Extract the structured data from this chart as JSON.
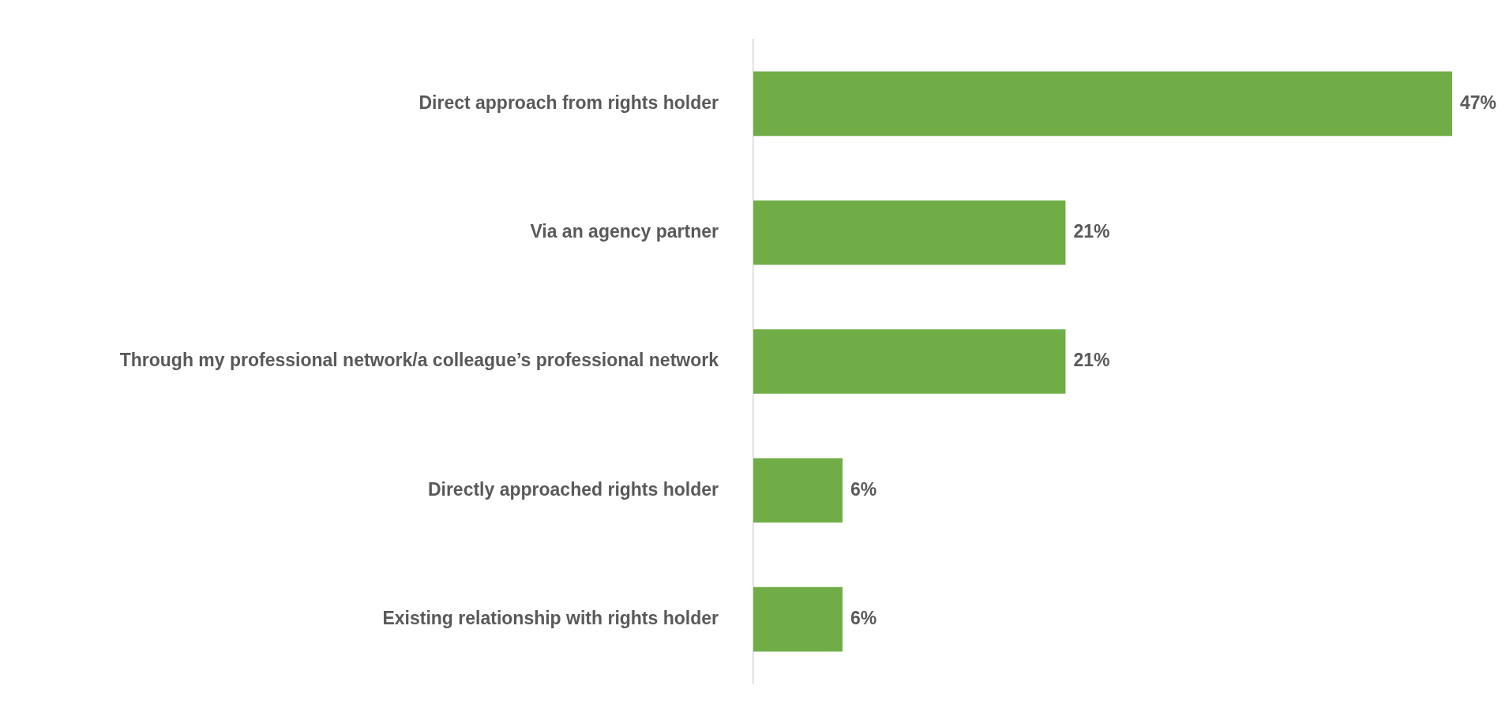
{
  "chart_data": {
    "type": "bar",
    "orientation": "horizontal",
    "categories": [
      "Direct approach from rights holder",
      "Via an agency partner",
      "Through my professional network/a colleague’s professional network",
      "Directly approached rights holder",
      "Existing relationship with rights holder"
    ],
    "values": [
      47,
      21,
      21,
      6,
      6
    ],
    "value_labels": [
      "47%",
      "21%",
      "21%",
      "6%",
      "6%"
    ],
    "color": "#70ad47",
    "tick_labels": "y",
    "grid": false,
    "legend": false
  }
}
